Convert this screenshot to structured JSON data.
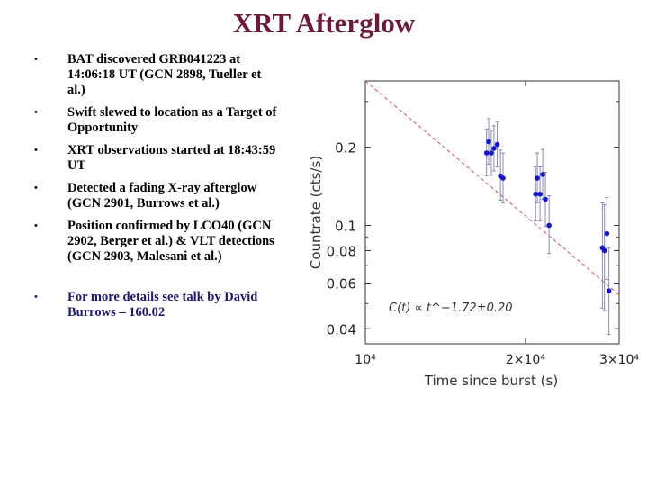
{
  "slide": {
    "title": "XRT Afterglow",
    "bullets": [
      "BAT discovered GRB041223 at 14:06:18 UT (GCN 2898, Tueller et al.)",
      "Swift slewed to location as a Target of Opportunity",
      "XRT observations started at 18:43:59 UT",
      "Detected a fading X-ray afterglow (GCN 2901, Burrows et al.)",
      "Position confirmed by LCO40 (GCN 2902, Berger et al.) & VLT detections (GCN 2903, Malesani et al.)",
      "For more details see talk by David Burrows – 160.02"
    ]
  },
  "chart_data": {
    "type": "scatter",
    "xlabel": "Time since burst (s)",
    "ylabel": "Countrate (cts/s)",
    "x_scale": "log",
    "y_scale": "log",
    "xlim": [
      10000,
      30000
    ],
    "ylim": [
      0.035,
      0.36
    ],
    "x_ticks": [
      {
        "value": 10000,
        "label": "10⁴"
      },
      {
        "value": 20000,
        "label": "2×10⁴"
      },
      {
        "value": 30000,
        "label": "3×10⁴"
      }
    ],
    "y_ticks": [
      {
        "value": 0.2,
        "label": "0.2"
      },
      {
        "value": 0.1,
        "label": "0.1"
      },
      {
        "value": 0.08,
        "label": "0.08"
      },
      {
        "value": 0.06,
        "label": "0.06"
      },
      {
        "value": 0.04,
        "label": "0.04"
      }
    ],
    "annotation": "C(t) ∝ t^−1.72±0.20",
    "fit": {
      "index": -1.72,
      "index_err": 0.2,
      "points": [
        [
          10000,
          0.36
        ],
        [
          30000,
          0.054
        ]
      ]
    },
    "series": [
      {
        "color": "#1515c8",
        "points": [
          {
            "x": 16900,
            "y": 0.19,
            "lo": 0.155,
            "hi": 0.235
          },
          {
            "x": 17050,
            "y": 0.21,
            "lo": 0.172,
            "hi": 0.258
          },
          {
            "x": 17250,
            "y": 0.19,
            "lo": 0.156,
            "hi": 0.232
          },
          {
            "x": 17450,
            "y": 0.198,
            "lo": 0.162,
            "hi": 0.242
          },
          {
            "x": 17700,
            "y": 0.205,
            "lo": 0.168,
            "hi": 0.25
          },
          {
            "x": 17950,
            "y": 0.155,
            "lo": 0.125,
            "hi": 0.195
          },
          {
            "x": 18150,
            "y": 0.152,
            "lo": 0.122,
            "hi": 0.19
          },
          {
            "x": 20900,
            "y": 0.132,
            "lo": 0.104,
            "hi": 0.168
          },
          {
            "x": 21050,
            "y": 0.152,
            "lo": 0.122,
            "hi": 0.19
          },
          {
            "x": 21300,
            "y": 0.132,
            "lo": 0.104,
            "hi": 0.168
          },
          {
            "x": 21550,
            "y": 0.157,
            "lo": 0.126,
            "hi": 0.196
          },
          {
            "x": 21800,
            "y": 0.126,
            "lo": 0.099,
            "hi": 0.16
          },
          {
            "x": 22150,
            "y": 0.1,
            "lo": 0.078,
            "hi": 0.13
          },
          {
            "x": 27900,
            "y": 0.082,
            "lo": 0.048,
            "hi": 0.122
          },
          {
            "x": 28150,
            "y": 0.08,
            "lo": 0.047,
            "hi": 0.12
          },
          {
            "x": 28450,
            "y": 0.093,
            "lo": 0.062,
            "hi": 0.128
          },
          {
            "x": 28700,
            "y": 0.056,
            "lo": 0.038,
            "hi": 0.082
          }
        ]
      }
    ]
  }
}
